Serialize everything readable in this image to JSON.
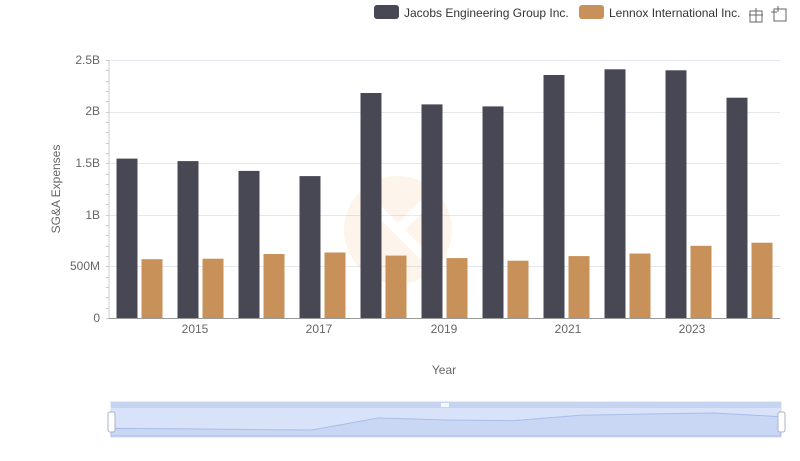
{
  "toolbox": {
    "zoom_icon": "zoom-icon",
    "restore_icon": "restore-icon"
  },
  "chart_data": {
    "type": "bar",
    "title": "",
    "xlabel": "Year",
    "ylabel": "SG&A Expenses",
    "categories": [
      "2014",
      "2015",
      "2016",
      "2017",
      "2018",
      "2019",
      "2020",
      "2021",
      "2022",
      "2023",
      "2024"
    ],
    "x_tick_labels": [
      "2015",
      "2017",
      "2019",
      "2021",
      "2023"
    ],
    "y_tick_labels": [
      "0",
      "500M",
      "1B",
      "1.5B",
      "2B",
      "2.5B"
    ],
    "ylim": [
      0,
      2500000000
    ],
    "grid": true,
    "legend_position": "top-right",
    "series": [
      {
        "name": "Jacobs Engineering Group Inc.",
        "color": "#484855",
        "values": [
          1545000000,
          1520000000,
          1425000000,
          1375000000,
          2180000000,
          2070000000,
          2050000000,
          2355000000,
          2410000000,
          2400000000,
          2135000000
        ]
      },
      {
        "name": "Lennox International Inc.",
        "color": "#c8915a",
        "values": [
          570000000,
          575000000,
          620000000,
          635000000,
          605000000,
          580000000,
          555000000,
          600000000,
          625000000,
          700000000,
          730000000
        ]
      }
    ]
  }
}
